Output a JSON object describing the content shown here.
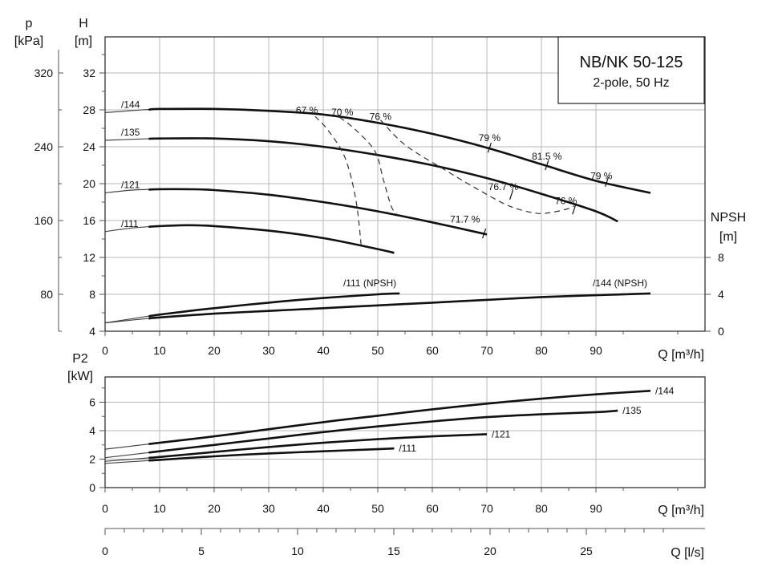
{
  "title": "NB/NK 50-125",
  "subtitle": "2-pole, 50 Hz",
  "colors": {
    "curve": "#111111",
    "grid": "#b8b8b8",
    "frame": "#222222"
  },
  "chart_data": [
    {
      "type": "line",
      "name": "head",
      "x": {
        "label": "Q [m³/h]",
        "range": [
          0,
          110
        ],
        "ticks": [
          0,
          10,
          20,
          30,
          40,
          50,
          60,
          70,
          80,
          90
        ]
      },
      "y": {
        "label": "H",
        "unit": "[m]",
        "range": [
          4,
          36
        ],
        "ticks": [
          4,
          8,
          12,
          16,
          20,
          24,
          28,
          32
        ]
      },
      "y_left_outer": {
        "label": "p",
        "unit": "[kPa]",
        "ticks": [
          80,
          160,
          240,
          320
        ]
      },
      "y_right": {
        "label": "NPSH",
        "unit": "[m]",
        "ticks": [
          0,
          4,
          8
        ]
      },
      "series": [
        {
          "name": "/144",
          "label": "/144",
          "points": [
            [
              0,
              27.7
            ],
            [
              10,
              28.1
            ],
            [
              20,
              28.1
            ],
            [
              30,
              27.9
            ],
            [
              40,
              27.5
            ],
            [
              50,
              26.6
            ],
            [
              60,
              25.4
            ],
            [
              70,
              23.9
            ],
            [
              80,
              22.1
            ],
            [
              90,
              20.3
            ],
            [
              100,
              19.0
            ]
          ]
        },
        {
          "name": "/135",
          "label": "/135",
          "points": [
            [
              0,
              24.7
            ],
            [
              10,
              24.9
            ],
            [
              20,
              24.9
            ],
            [
              30,
              24.6
            ],
            [
              40,
              24.0
            ],
            [
              50,
              23.1
            ],
            [
              60,
              22.0
            ],
            [
              70,
              20.6
            ],
            [
              80,
              18.9
            ],
            [
              90,
              17.0
            ],
            [
              94,
              15.9
            ]
          ]
        },
        {
          "name": "/121",
          "label": "/121",
          "points": [
            [
              0,
              19.0
            ],
            [
              5,
              19.3
            ],
            [
              10,
              19.4
            ],
            [
              15,
              19.4
            ],
            [
              20,
              19.3
            ],
            [
              30,
              18.8
            ],
            [
              40,
              18.0
            ],
            [
              50,
              17.0
            ],
            [
              60,
              15.8
            ],
            [
              70,
              14.5
            ]
          ]
        },
        {
          "name": "/111",
          "label": "/111",
          "points": [
            [
              0,
              14.8
            ],
            [
              5,
              15.2
            ],
            [
              10,
              15.4
            ],
            [
              15,
              15.5
            ],
            [
              20,
              15.4
            ],
            [
              30,
              14.9
            ],
            [
              40,
              14.1
            ],
            [
              50,
              12.9
            ],
            [
              53,
              12.5
            ]
          ]
        }
      ],
      "npsh_series": [
        {
          "name": "/111 (NPSH)",
          "label": "/111 (NPSH)",
          "points": [
            [
              0,
              0.9
            ],
            [
              10,
              1.8
            ],
            [
              20,
              2.5
            ],
            [
              30,
              3.1
            ],
            [
              40,
              3.6
            ],
            [
              50,
              4.0
            ],
            [
              54,
              4.1
            ]
          ]
        },
        {
          "name": "/144 (NPSH)",
          "label": "/144 (NPSH)",
          "points": [
            [
              0,
              0.9
            ],
            [
              10,
              1.5
            ],
            [
              20,
              1.9
            ],
            [
              30,
              2.2
            ],
            [
              40,
              2.5
            ],
            [
              50,
              2.8
            ],
            [
              60,
              3.1
            ],
            [
              70,
              3.4
            ],
            [
              80,
              3.7
            ],
            [
              90,
              3.9
            ],
            [
              100,
              4.1
            ]
          ]
        }
      ],
      "efficiency_labels": [
        {
          "text": "67 %",
          "q": 37,
          "h": 27.6
        },
        {
          "text": "70 %",
          "q": 43.5,
          "h": 27.4
        },
        {
          "text": "76 %",
          "q": 50.5,
          "h": 26.9
        },
        {
          "text": "79 %",
          "q": 70.5,
          "h": 24.6
        },
        {
          "text": "81.5 %",
          "q": 81,
          "h": 22.6
        },
        {
          "text": "79 %",
          "q": 91,
          "h": 20.5
        },
        {
          "text": "76.7 %",
          "q": 73,
          "h": 19.3
        },
        {
          "text": "76 %",
          "q": 84.5,
          "h": 17.8
        },
        {
          "text": "71.7 %",
          "q": 66,
          "h": 15.8
        }
      ],
      "iso_efficiency_curves": [
        {
          "name": "67 %",
          "points": [
            [
              38.5,
              27.3
            ],
            [
              41,
              25.7
            ],
            [
              44,
              22.8
            ],
            [
              46,
              18.2
            ],
            [
              47,
              13.0
            ]
          ]
        },
        {
          "name": "70 %",
          "points": [
            [
              43,
              27.2
            ],
            [
              46,
              25.8
            ],
            [
              49.5,
              23.5
            ],
            [
              51,
              20.5
            ],
            [
              52.5,
              17.5
            ],
            [
              53.5,
              16.8
            ]
          ]
        },
        {
          "name": "76 %",
          "points": [
            [
              50.5,
              26.9
            ],
            [
              55,
              24.2
            ],
            [
              62,
              21.6
            ],
            [
              68,
              19.5
            ],
            [
              74,
              17.6
            ],
            [
              79,
              16.8
            ],
            [
              82,
              16.9
            ],
            [
              85,
              17.3
            ],
            [
              86,
              17.6
            ]
          ]
        }
      ]
    },
    {
      "type": "line",
      "name": "power",
      "x": {
        "label": "Q [m³/h]",
        "range": [
          0,
          110
        ],
        "ticks": [
          0,
          10,
          20,
          30,
          40,
          50,
          60,
          70,
          80,
          90
        ]
      },
      "y": {
        "label": "P2",
        "unit": "[kW]",
        "range": [
          0,
          8
        ],
        "ticks": [
          0,
          2,
          4,
          6
        ]
      },
      "series": [
        {
          "name": "/144",
          "label": "/144",
          "points": [
            [
              0,
              2.7
            ],
            [
              10,
              3.15
            ],
            [
              20,
              3.6
            ],
            [
              30,
              4.1
            ],
            [
              40,
              4.6
            ],
            [
              50,
              5.05
            ],
            [
              60,
              5.5
            ],
            [
              70,
              5.9
            ],
            [
              80,
              6.25
            ],
            [
              90,
              6.55
            ],
            [
              100,
              6.8
            ]
          ]
        },
        {
          "name": "/135",
          "label": "/135",
          "points": [
            [
              0,
              2.1
            ],
            [
              10,
              2.55
            ],
            [
              20,
              3.0
            ],
            [
              30,
              3.45
            ],
            [
              40,
              3.9
            ],
            [
              50,
              4.3
            ],
            [
              60,
              4.65
            ],
            [
              70,
              4.95
            ],
            [
              80,
              5.15
            ],
            [
              90,
              5.3
            ],
            [
              94,
              5.4
            ]
          ]
        },
        {
          "name": "/121",
          "label": "/121",
          "points": [
            [
              0,
              1.85
            ],
            [
              10,
              2.15
            ],
            [
              20,
              2.5
            ],
            [
              30,
              2.85
            ],
            [
              40,
              3.15
            ],
            [
              50,
              3.4
            ],
            [
              60,
              3.6
            ],
            [
              70,
              3.75
            ]
          ]
        },
        {
          "name": "/111",
          "label": "/111",
          "points": [
            [
              0,
              1.7
            ],
            [
              10,
              1.95
            ],
            [
              20,
              2.2
            ],
            [
              30,
              2.4
            ],
            [
              40,
              2.55
            ],
            [
              50,
              2.7
            ],
            [
              53,
              2.75
            ]
          ]
        }
      ]
    },
    {
      "type": "axis",
      "name": "flow-ls",
      "x": {
        "label": "Q [l/s]",
        "range": [
          0,
          30.6
        ],
        "ticks": [
          0,
          5,
          10,
          15,
          20,
          25
        ]
      }
    }
  ]
}
